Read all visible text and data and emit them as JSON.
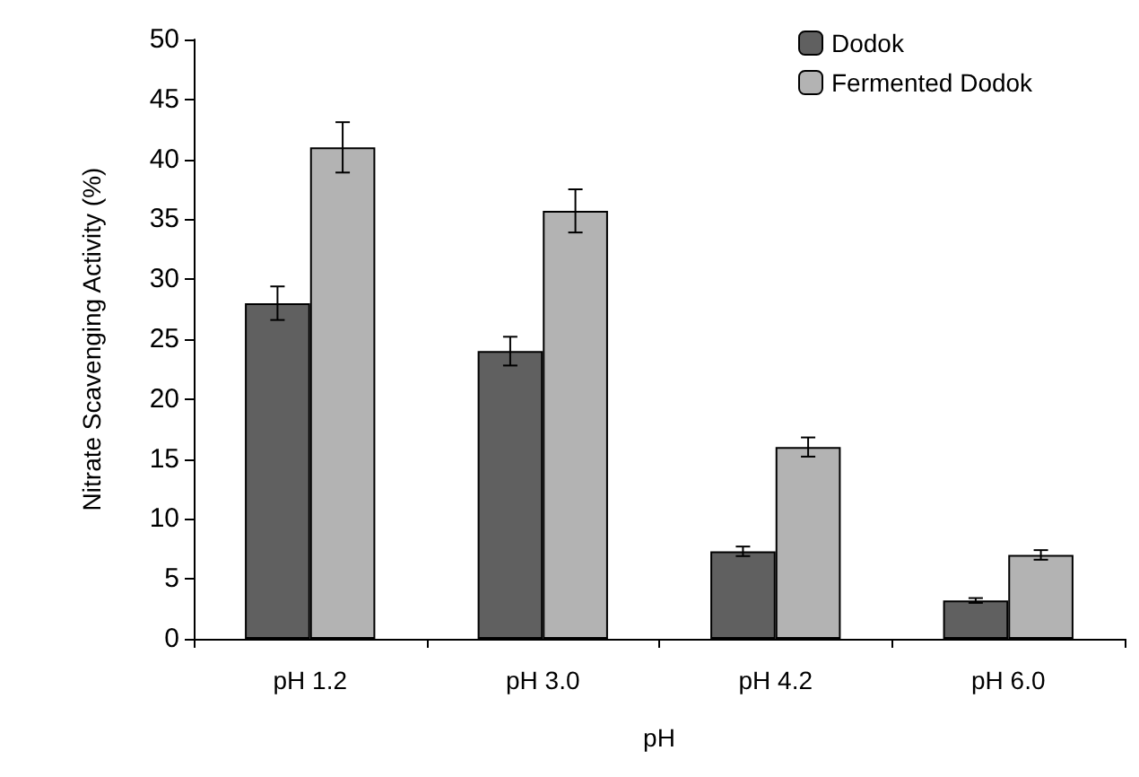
{
  "chart_data": {
    "type": "bar",
    "xlabel": "pH",
    "ylabel": "Nitrate Scavenging Activity (%)",
    "categories": [
      "pH 1.2",
      "pH 3.0",
      "pH 4.2",
      "pH 6.0"
    ],
    "series": [
      {
        "name": "Dodok",
        "color": "#606060",
        "values": [
          28,
          24,
          7.3,
          3.2
        ],
        "errors": [
          1.4,
          1.2,
          0.4,
          0.2
        ]
      },
      {
        "name": "Fermented Dodok",
        "color": "#b3b3b3",
        "values": [
          41,
          35.7,
          16,
          7
        ],
        "errors": [
          2.1,
          1.8,
          0.8,
          0.4
        ]
      }
    ],
    "ylim": [
      0,
      50
    ],
    "yticks": [
      0,
      5,
      10,
      15,
      20,
      25,
      30,
      35,
      40,
      45,
      50
    ],
    "grid": false,
    "legend": "top right"
  }
}
